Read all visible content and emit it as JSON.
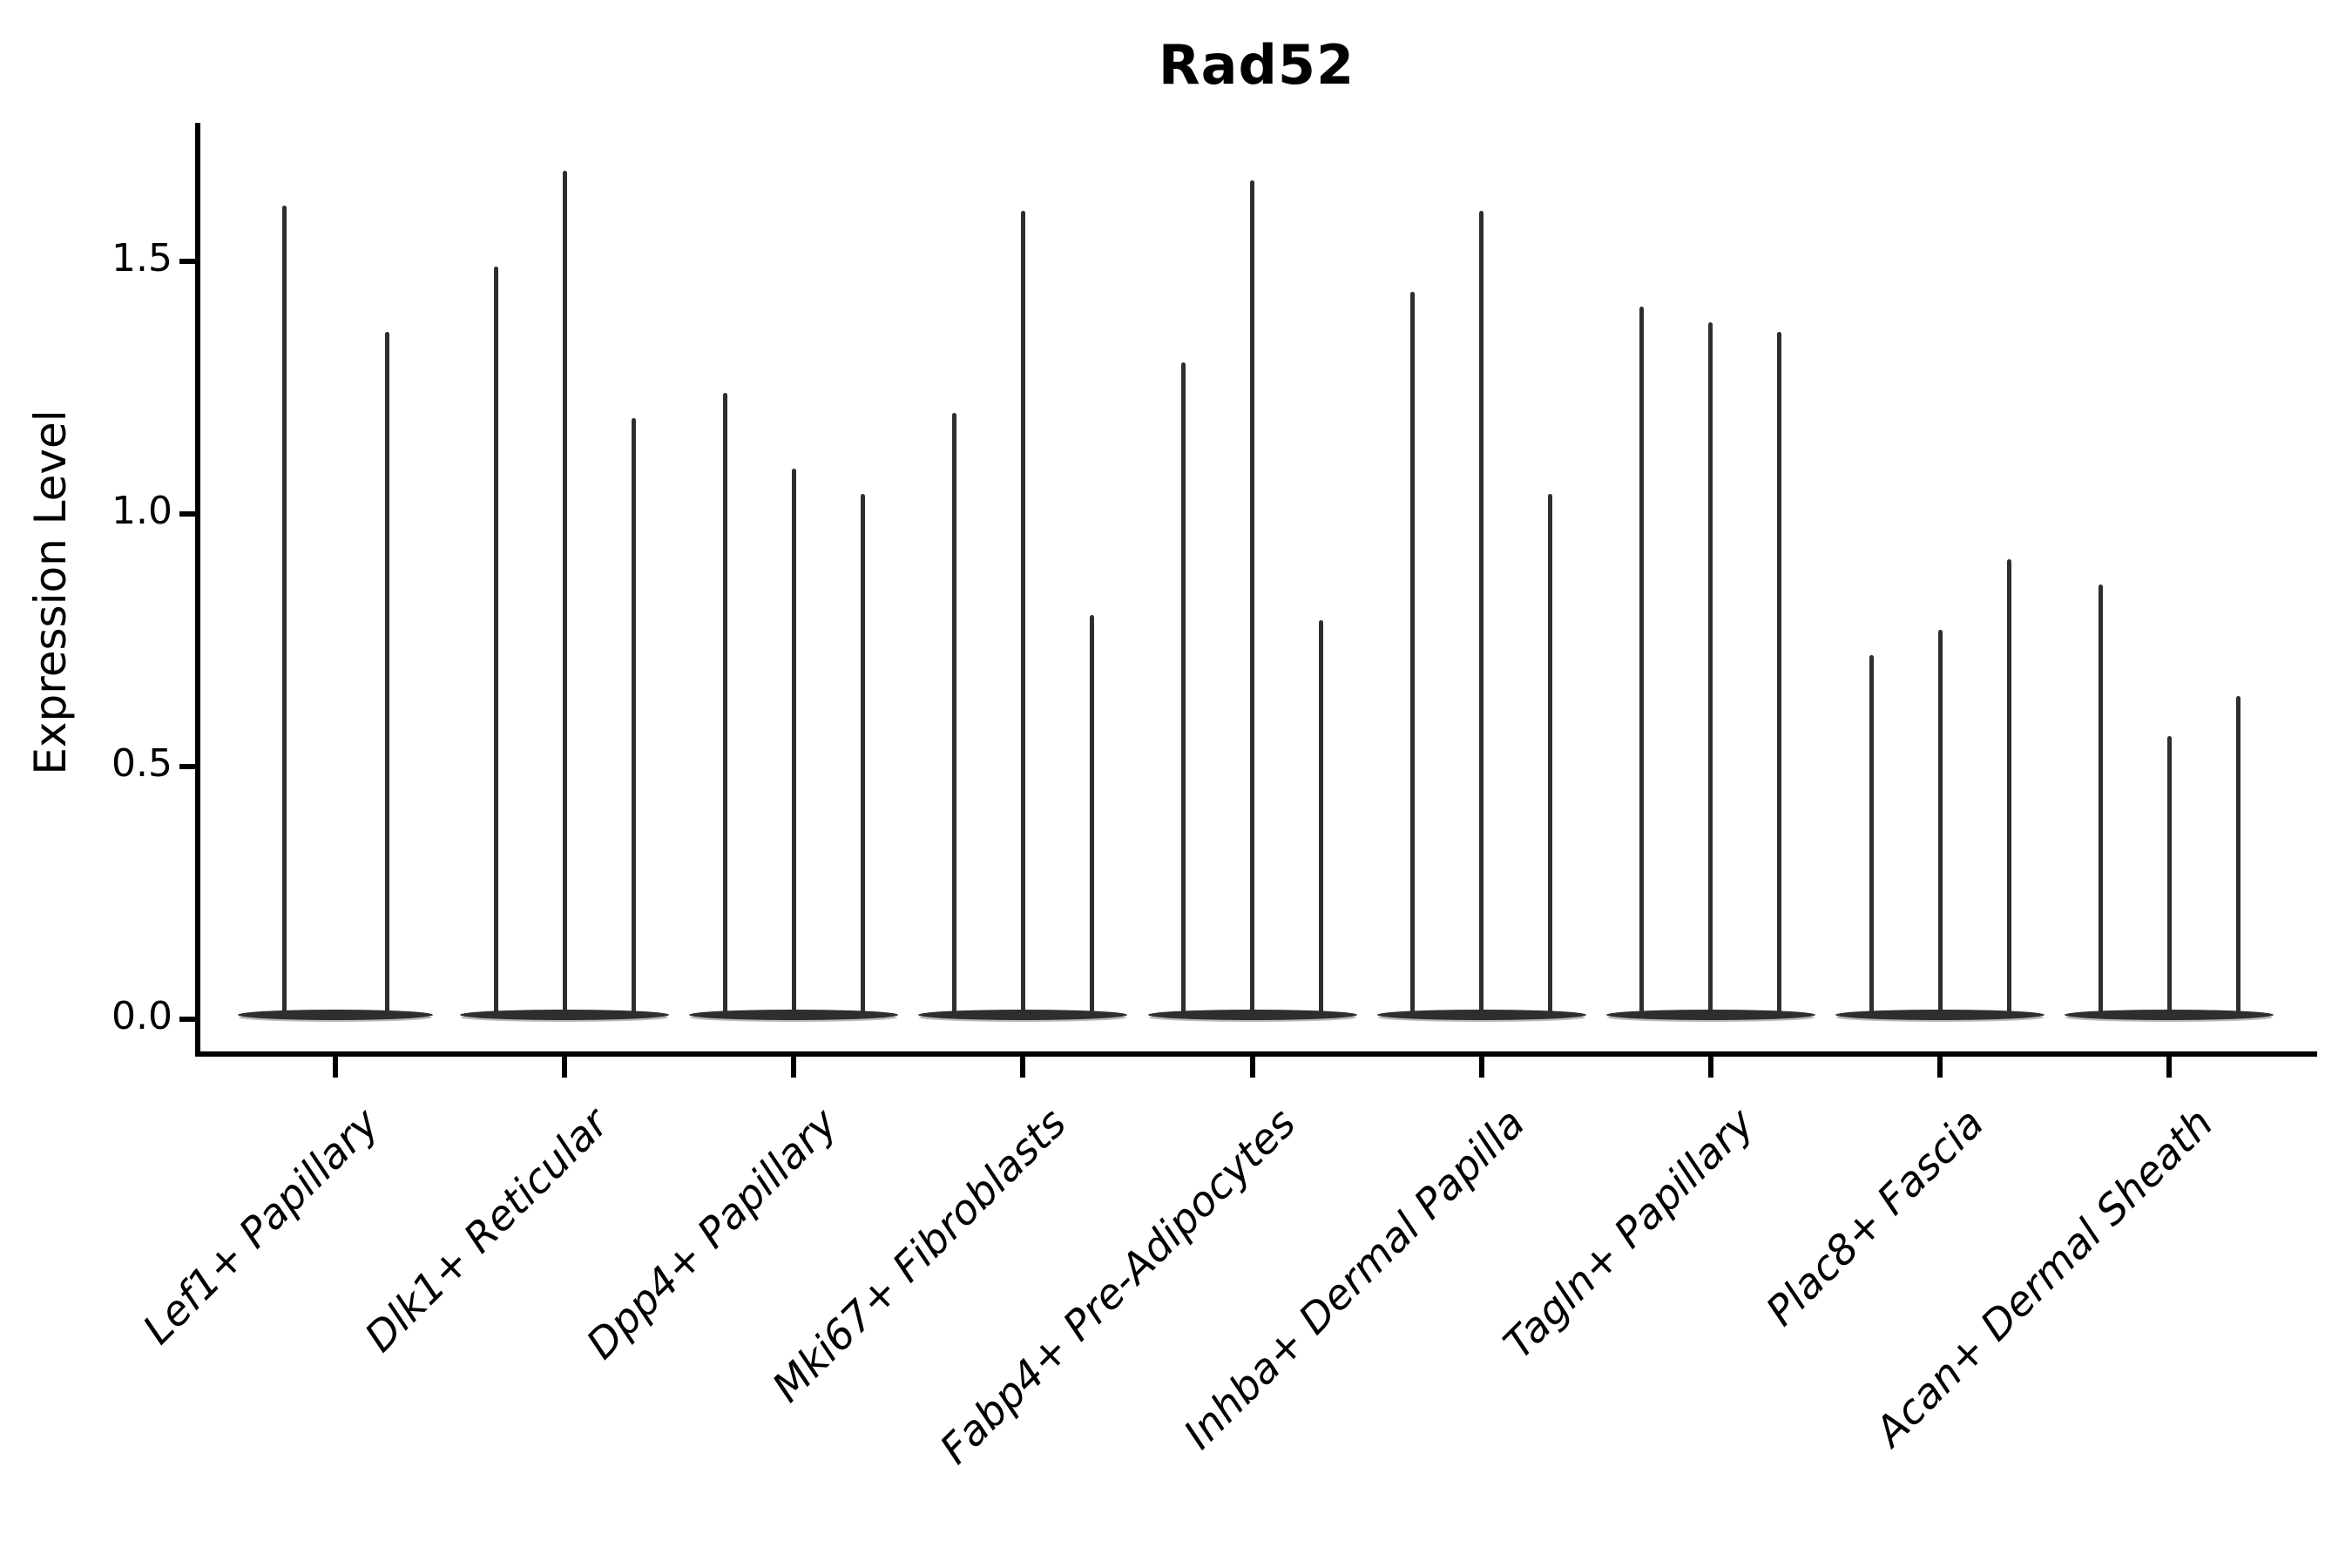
{
  "title": "Rad52",
  "y_axis": {
    "label": "Expression Level",
    "tick_labels": [
      "0.0",
      "0.5",
      "1.0",
      "1.5"
    ]
  },
  "colors": {
    "background": "#ffffff",
    "axis": "#000000",
    "text": "#000000",
    "violin": "#2e2e2e",
    "violin_edge_highlight": "#b9b9b9"
  },
  "chart_data": {
    "type": "violin",
    "title": "Rad52",
    "xlabel": "",
    "ylabel": "Expression Level",
    "yticks": [
      0.0,
      0.5,
      1.0,
      1.5
    ],
    "ytick_labels": [
      "0.0",
      "0.5",
      "1.0",
      "1.5"
    ],
    "ylim": [
      -0.07,
      1.78
    ],
    "grid": false,
    "legend": "none",
    "shape_note": "Seurat-style violin plot; every violin is a wide flat lens at expression 0 with a very thin vertical spike rising to its maximum value",
    "categories": [
      "Lef1+ Papillary",
      "Dlk1+ Reticular",
      "Dpp4+ Papillary",
      "Mki67+ Fibroblasts",
      "Fabp4+ Pre-Adipocytes",
      "Inhba+ Dermal Papilla",
      "Tagln+ Papillary",
      "Plac8+ Fascia",
      "Acan+ Dermal Sheath"
    ],
    "groups": [
      {
        "category": "Lef1+ Papillary",
        "violin_min": 0.0,
        "violin_maxima": [
          1.61,
          1.36
        ]
      },
      {
        "category": "Dlk1+ Reticular",
        "violin_min": 0.0,
        "violin_maxima": [
          1.49,
          1.68,
          1.19
        ]
      },
      {
        "category": "Dpp4+ Papillary",
        "violin_min": 0.0,
        "violin_maxima": [
          1.24,
          1.09,
          1.04
        ]
      },
      {
        "category": "Mki67+ Fibroblasts",
        "violin_min": 0.0,
        "violin_maxima": [
          1.2,
          1.6,
          0.8
        ]
      },
      {
        "category": "Fabp4+ Pre-Adipocytes",
        "violin_min": 0.0,
        "violin_maxima": [
          1.3,
          1.66,
          0.79
        ]
      },
      {
        "category": "Inhba+ Dermal Papilla",
        "violin_min": 0.0,
        "violin_maxima": [
          1.44,
          1.6,
          1.04
        ]
      },
      {
        "category": "Tagln+ Papillary",
        "violin_min": 0.0,
        "violin_maxima": [
          1.41,
          1.38,
          1.36
        ]
      },
      {
        "category": "Plac8+ Fascia",
        "violin_min": 0.0,
        "violin_maxima": [
          0.72,
          0.77,
          0.91
        ]
      },
      {
        "category": "Acan+ Dermal Sheath",
        "violin_min": 0.0,
        "violin_maxima": [
          0.86,
          0.56,
          0.64
        ]
      }
    ]
  }
}
